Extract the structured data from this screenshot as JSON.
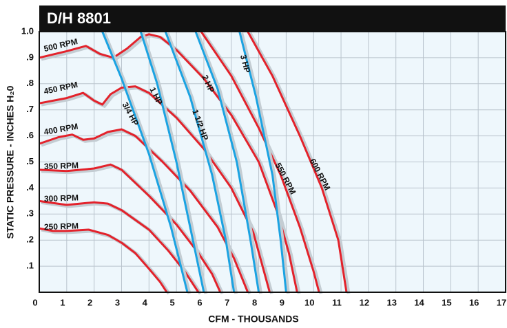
{
  "chart_data": {
    "type": "line",
    "title": "D/H 8801",
    "xlabel": "CFM - THOUSANDS",
    "ylabel": "STATIC PRESSURE - INCHES H₂0",
    "xlim": [
      0,
      17
    ],
    "ylim": [
      0,
      1.0
    ],
    "xticks": [
      0,
      1,
      2,
      3,
      4,
      5,
      6,
      7,
      8,
      9,
      10,
      11,
      12,
      13,
      14,
      15,
      16,
      17
    ],
    "yticks": [
      {
        "value": 0.1,
        "label": ".1"
      },
      {
        "value": 0.2,
        "label": ".2"
      },
      {
        "value": 0.3,
        "label": ".3"
      },
      {
        "value": 0.4,
        "label": ".4"
      },
      {
        "value": 0.5,
        "label": ".5"
      },
      {
        "value": 0.6,
        "label": ".6"
      },
      {
        "value": 0.7,
        "label": ".7"
      },
      {
        "value": 0.8,
        "label": ".8"
      },
      {
        "value": 0.9,
        "label": ".9"
      },
      {
        "value": 1.0,
        "label": "1.0"
      }
    ],
    "grid": true,
    "series": [
      {
        "name": "250 RPM",
        "color": "#e3222b",
        "x": [
          0,
          0.5,
          1,
          1.8,
          2.5,
          3,
          3.5,
          4,
          4.4,
          4.65
        ],
        "values": [
          0.245,
          0.235,
          0.235,
          0.24,
          0.22,
          0.19,
          0.15,
          0.09,
          0.04,
          0
        ]
      },
      {
        "name": "300 RPM",
        "color": "#e3222b",
        "x": [
          0,
          1,
          2,
          2.5,
          3,
          4,
          4.7,
          5.3,
          5.8
        ],
        "values": [
          0.35,
          0.335,
          0.345,
          0.34,
          0.315,
          0.24,
          0.16,
          0.08,
          0
        ]
      },
      {
        "name": "350 RPM",
        "color": "#e3222b",
        "x": [
          0,
          1,
          2,
          2.6,
          3,
          4,
          5,
          5.8,
          6.3,
          6.6
        ],
        "values": [
          0.47,
          0.465,
          0.475,
          0.49,
          0.47,
          0.37,
          0.26,
          0.15,
          0.07,
          0
        ]
      },
      {
        "name": "400 RPM",
        "color": "#e3222b",
        "x": [
          0,
          0.7,
          1.2,
          1.6,
          2,
          2.5,
          3,
          3.5,
          4.5,
          5.5,
          6.5,
          7.1,
          7.6
        ],
        "values": [
          0.57,
          0.595,
          0.605,
          0.585,
          0.59,
          0.615,
          0.625,
          0.6,
          0.5,
          0.39,
          0.25,
          0.13,
          0
        ]
      },
      {
        "name": "450 RPM",
        "color": "#e3222b",
        "x": [
          0,
          1,
          1.6,
          2,
          2.3,
          2.6,
          3,
          3.5,
          4,
          5,
          6,
          7,
          7.8,
          8.4
        ],
        "values": [
          0.725,
          0.745,
          0.765,
          0.735,
          0.72,
          0.76,
          0.785,
          0.79,
          0.765,
          0.67,
          0.55,
          0.4,
          0.23,
          0
        ]
      },
      {
        "name": "500 RPM",
        "color": "#e3222b",
        "x": [
          0,
          1,
          1.7,
          2.2,
          2.7,
          3.2,
          3.7,
          4,
          4.4,
          5,
          6,
          7,
          8,
          8.7,
          9.1,
          9.4
        ],
        "values": [
          0.9,
          0.925,
          0.945,
          0.915,
          0.9,
          0.935,
          0.98,
          0.99,
          0.98,
          0.93,
          0.82,
          0.68,
          0.5,
          0.3,
          0.15,
          0
        ]
      },
      {
        "name": "550 RPM",
        "color": "#e3222b",
        "x": [
          5.9,
          7,
          8,
          8.8,
          9.5,
          10,
          10.2
        ],
        "values": [
          1.0,
          0.83,
          0.63,
          0.45,
          0.25,
          0.08,
          0
        ]
      },
      {
        "name": "600 RPM",
        "color": "#e3222b",
        "x": [
          7.6,
          8.5,
          9.5,
          10.3,
          10.9,
          11.2
        ],
        "values": [
          1.0,
          0.83,
          0.6,
          0.4,
          0.2,
          0
        ]
      },
      {
        "name": "3/4 HP",
        "color": "#1ba3e2",
        "x": [
          2.3,
          3,
          4,
          4.8,
          5.4
        ],
        "values": [
          1.0,
          0.82,
          0.53,
          0.25,
          0
        ]
      },
      {
        "name": "1 HP",
        "color": "#1ba3e2",
        "x": [
          3.7,
          4.3,
          5,
          5.6,
          6
        ],
        "values": [
          1.0,
          0.8,
          0.5,
          0.2,
          0
        ]
      },
      {
        "name": "1 1/2 HP",
        "color": "#1ba3e2",
        "x": [
          4.6,
          5.5,
          6.3,
          6.8,
          7.1
        ],
        "values": [
          1.0,
          0.75,
          0.45,
          0.2,
          0
        ]
      },
      {
        "name": "2 HP",
        "color": "#1ba3e2",
        "x": [
          5.7,
          6.5,
          7.2,
          7.7,
          8
        ],
        "values": [
          1.0,
          0.78,
          0.5,
          0.2,
          0
        ]
      },
      {
        "name": "3 HP",
        "color": "#1ba3e2",
        "x": [
          7.3,
          7.9,
          8.5,
          8.8,
          9
        ],
        "values": [
          1.0,
          0.75,
          0.45,
          0.2,
          0
        ]
      }
    ]
  }
}
